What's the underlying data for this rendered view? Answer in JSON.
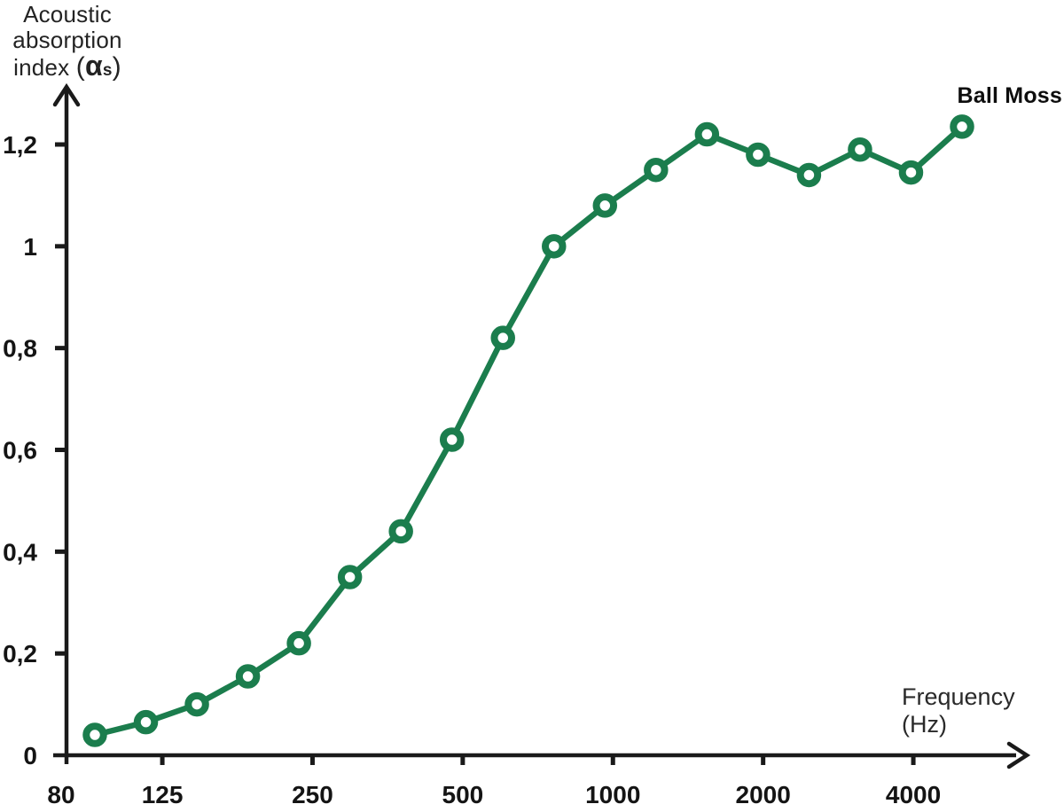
{
  "series_label": "Ball Moss",
  "axis_titles": {
    "y_line1": "Acoustic",
    "y_line2": "absorption",
    "y_line3": "index",
    "y_sym_open": "(",
    "y_sym_alpha": "α",
    "y_sym_sub": "s",
    "y_sym_close": ")",
    "x_line1": "Frequency",
    "x_line2": "(Hz)"
  },
  "colors": {
    "line": "#1b7d4d",
    "marker_ring": "#1b7d4d",
    "marker_center": "#ffffff",
    "axis": "#1a1a1a",
    "tick_text": "#141414",
    "title_text": "#232323"
  },
  "chart_data": {
    "type": "line",
    "title": "Ball Moss",
    "xlabel": "Frequency (Hz)",
    "ylabel": "Acoustic absorption index (αs)",
    "x_scale": "log",
    "x": [
      100,
      125,
      160,
      200,
      250,
      315,
      400,
      500,
      630,
      800,
      1000,
      1250,
      1600,
      2000,
      2500,
      3150,
      4000,
      5000
    ],
    "series": [
      {
        "name": "Ball Moss",
        "values": [
          0.04,
          0.065,
          0.1,
          0.155,
          0.22,
          0.35,
          0.44,
          0.62,
          0.82,
          1.0,
          1.08,
          1.15,
          1.22,
          1.18,
          1.14,
          1.19,
          1.145,
          1.235
        ]
      }
    ],
    "x_ticks": [
      {
        "value": 80,
        "label": "80"
      },
      {
        "value": 125,
        "label": "125"
      },
      {
        "value": 250,
        "label": "250"
      },
      {
        "value": 500,
        "label": "500"
      },
      {
        "value": 1000,
        "label": "1000"
      },
      {
        "value": 2000,
        "label": "2000"
      },
      {
        "value": 4000,
        "label": "4000"
      }
    ],
    "y_ticks": [
      {
        "value": 0,
        "label": "0"
      },
      {
        "value": 0.2,
        "label": "0,2"
      },
      {
        "value": 0.4,
        "label": "0,4"
      },
      {
        "value": 0.6,
        "label": "0,6"
      },
      {
        "value": 0.8,
        "label": "0,8"
      },
      {
        "value": 1.0,
        "label": "1"
      },
      {
        "value": 1.2,
        "label": "1,2"
      }
    ],
    "ylim": [
      0,
      1.3
    ],
    "xlim": [
      80,
      6000
    ],
    "grid": false,
    "legend_position": "top-right"
  }
}
